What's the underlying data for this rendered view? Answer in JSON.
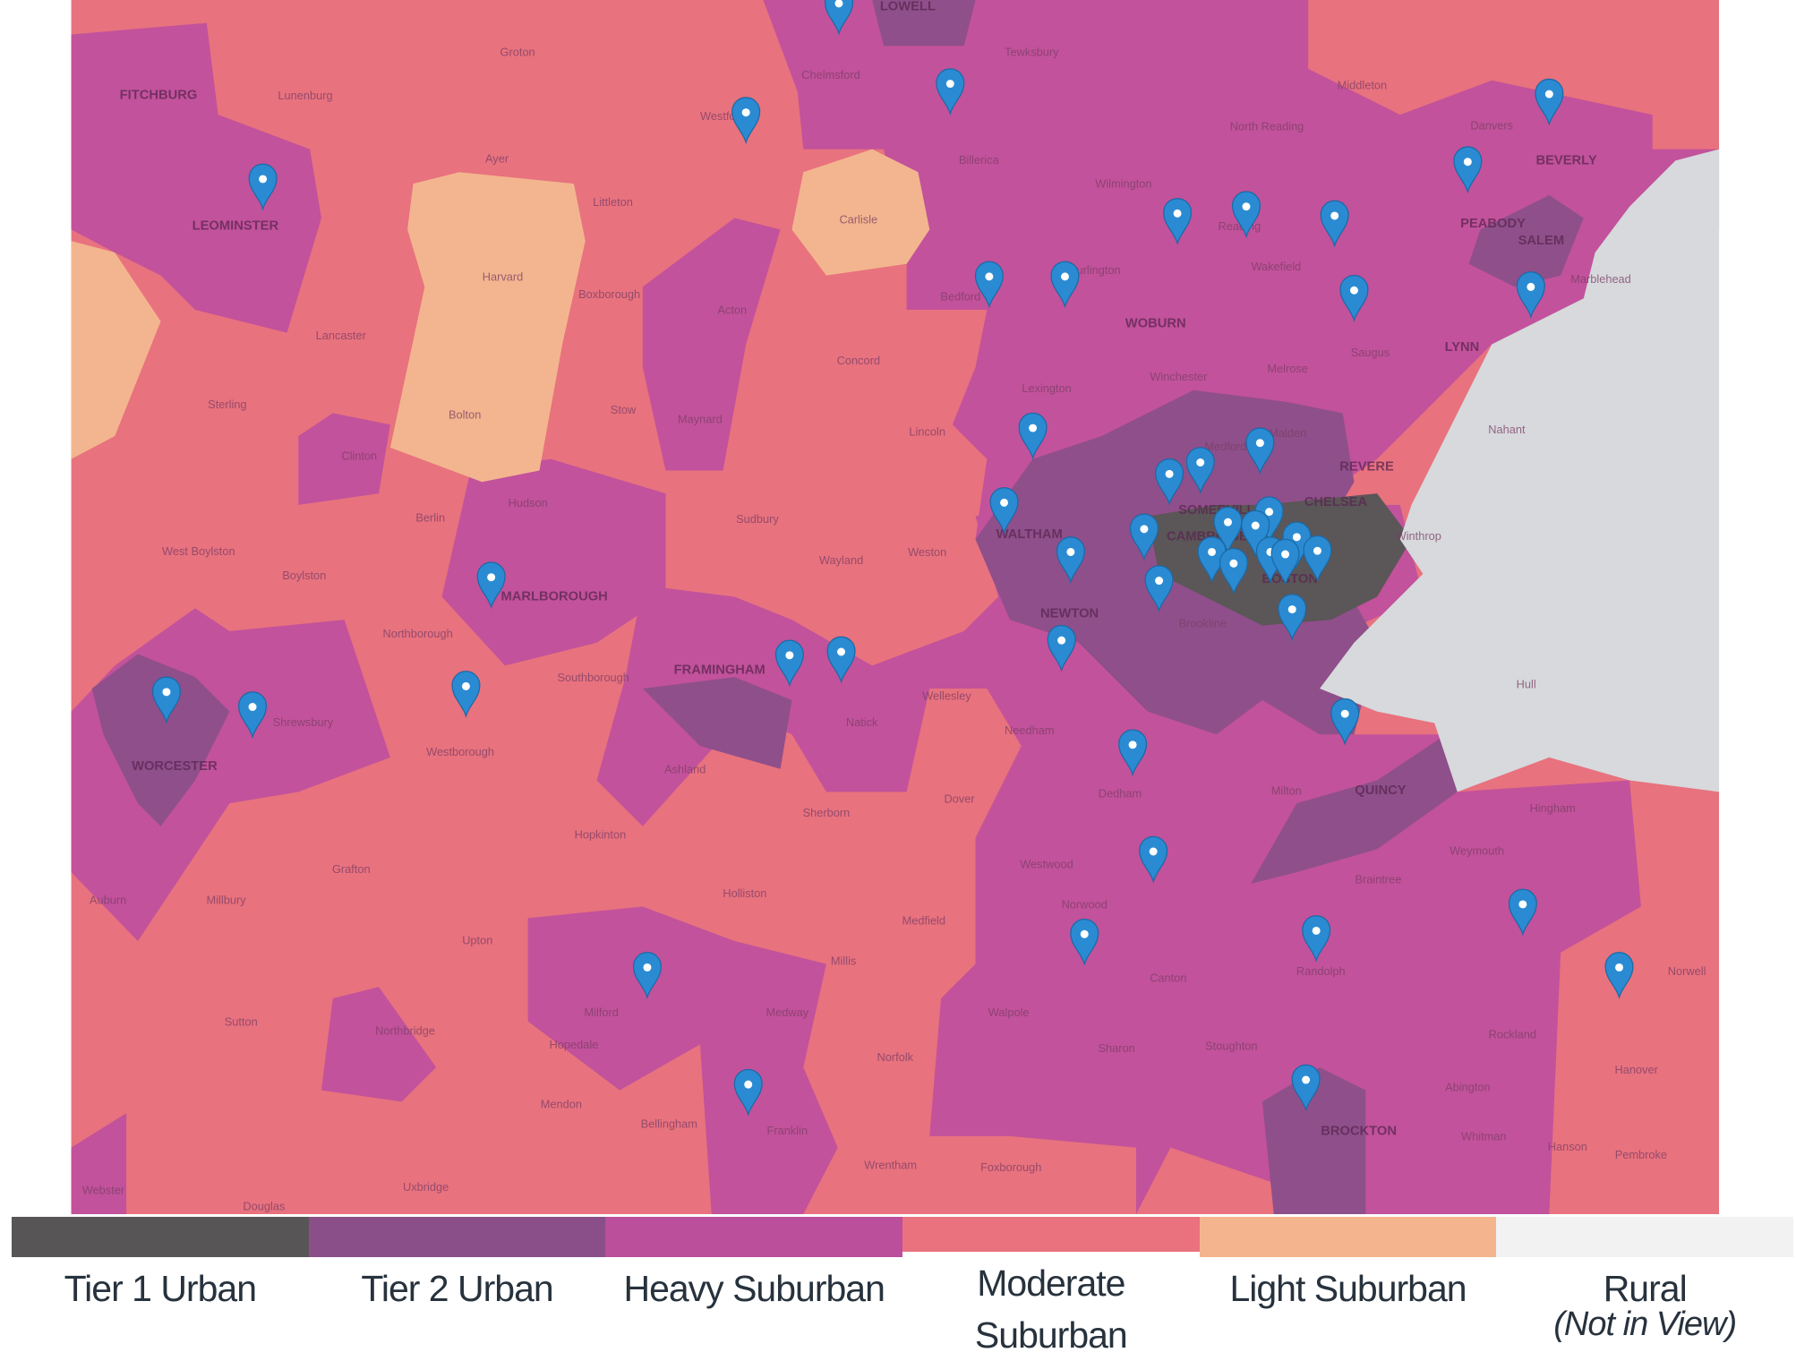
{
  "map": {
    "places": [
      "FITCHBURG",
      "Lunenburg",
      "Groton",
      "Ayer",
      "Littleton",
      "LEOMINSTER",
      "Harvard",
      "Boxborough",
      "Acton",
      "Lancaster",
      "Carlisle",
      "Concord",
      "Sterling",
      "Bolton",
      "Stow",
      "Maynard",
      "Lincoln",
      "Clinton",
      "Hudson",
      "Berlin",
      "Sudbury",
      "Wayland",
      "Weston",
      "West Boylston",
      "Boylston",
      "MARLBOROUGH",
      "Northborough",
      "Southborough",
      "FRAMINGHAM",
      "Wellesley",
      "Natick",
      "Shrewsbury",
      "WORCESTER",
      "Westborough",
      "Ashland",
      "Needham",
      "Sherborn",
      "Dover",
      "Hopkinton",
      "Grafton",
      "Millbury",
      "Auburn",
      "Holliston",
      "Medfield",
      "Westwood",
      "Norwood",
      "Dedham",
      "Upton",
      "Millis",
      "Canton",
      "Milford",
      "Medway",
      "Walpole",
      "Sutton",
      "Hopedale",
      "Northbridge",
      "Norfolk",
      "Sharon",
      "Stoughton",
      "Mendon",
      "Bellingham",
      "Franklin",
      "Wrentham",
      "Foxborough",
      "BROCKTON",
      "Webster",
      "Douglas",
      "Uxbridge",
      "Chelmsford",
      "LOWELL",
      "Tewksbury",
      "Billerica",
      "Wilmington",
      "North Reading",
      "Middleton",
      "Danvers",
      "BEVERLY",
      "PEABODY",
      "SALEM",
      "Marblehead",
      "Reading",
      "Wakefield",
      "Bedford",
      "Burlington",
      "WOBURN",
      "Saugus",
      "LYNN",
      "Lexington",
      "Winchester",
      "Melrose",
      "Nahant",
      "Medford",
      "Malden",
      "REVERE",
      "SOMERVILLE",
      "CHELSEA",
      "Winthrop",
      "WALTHAM",
      "CAMBRIDGE",
      "BOSTON",
      "NEWTON",
      "Brookline",
      "Milton",
      "QUINCY",
      "Hingham",
      "Weymouth",
      "Braintree",
      "Randolph",
      "Rockland",
      "Abington",
      "Whitman",
      "Hanson",
      "Pembroke",
      "Hanover",
      "Norwell",
      "Hull",
      "Westford"
    ]
  },
  "legend": [
    {
      "name": "Tier 1 Urban",
      "color": "#585556"
    },
    {
      "name": "Tier 2 Urban",
      "color": "#8a4f88"
    },
    {
      "name": "Heavy Suburban",
      "color": "#bb4f9c"
    },
    {
      "name": "Moderate Suburban",
      "color": "#ea727f"
    },
    {
      "name": "Light Suburban",
      "color": "#f4b48e"
    },
    {
      "name": "Rural",
      "color": "#f2f2f2",
      "note": "(Not in View)"
    }
  ]
}
